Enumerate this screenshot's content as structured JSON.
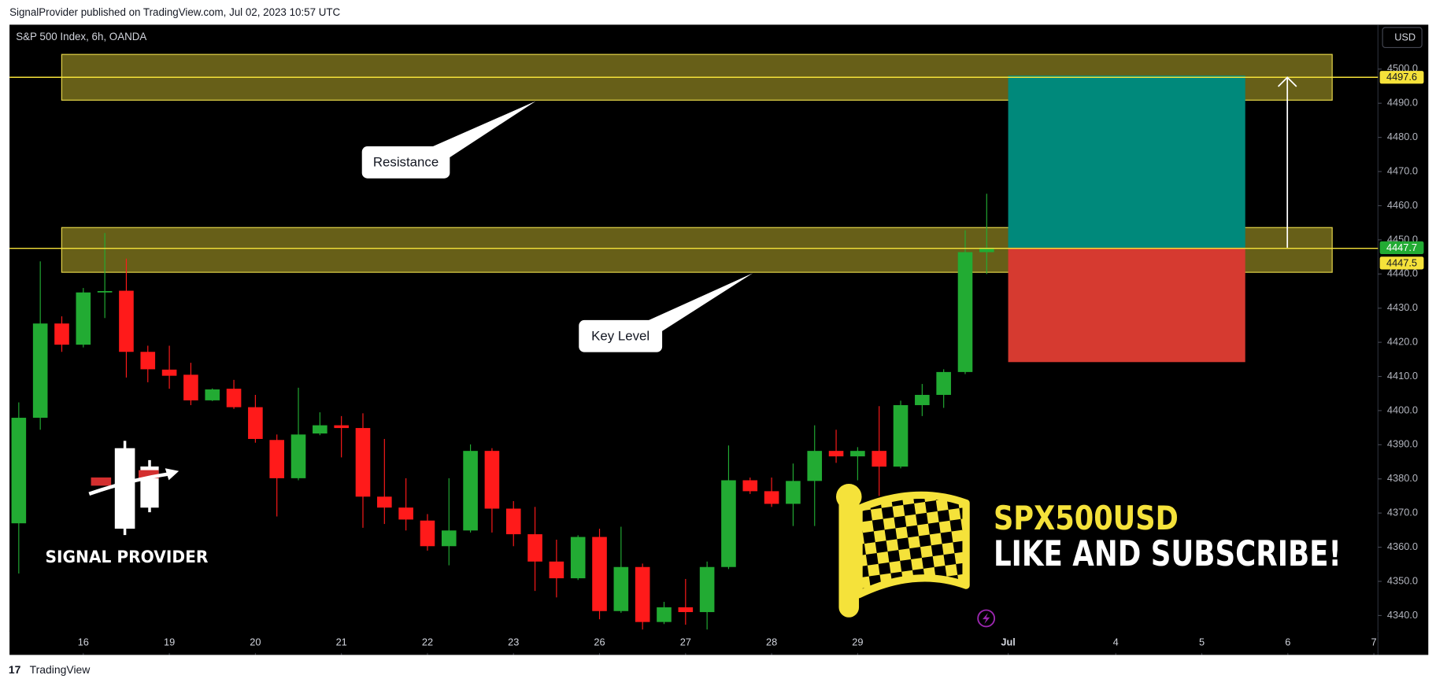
{
  "header": "SignalProvider published on TradingView.com, Jul 02, 2023 10:57 UTC",
  "footer": "TradingView",
  "branding": {
    "logo_text": "SIGNAL PROVIDER",
    "symbol": "SPX500USD",
    "call_to_action": "LIKE AND SUBSCRIBE!"
  },
  "chart_data": {
    "type": "candlestick",
    "title": "S&P 500 Index, 6h, OANDA",
    "currency": "USD",
    "up_color": "#22ab33",
    "down_color": "#ff1a1a",
    "open": [
      4367,
      4397.9,
      4425.5,
      4419.3,
      4434.6,
      4435.1,
      4417.2,
      4412,
      4410.5,
      4403,
      4406.4,
      4401,
      4391.4,
      4380.2,
      4393.3,
      4395.7,
      4394.9,
      4374.8,
      4371.6,
      4367.8,
      4360.3,
      4364.9,
      4388.2,
      4371.3,
      4363.8,
      4355.8,
      4350.9,
      4363,
      4341.3,
      4354.2,
      4338.1,
      4342.4,
      4341,
      4354.2,
      4379.6,
      4376.4,
      4372.7,
      4379.4,
      4388.2,
      4386.6,
      4388.2,
      4383.6,
      4401.6,
      4404.6,
      4411.3,
      4446.4
    ],
    "high": [
      4402.4,
      4443.7,
      4427.6,
      4435.9,
      4452,
      4444.5,
      4419,
      4419,
      4414,
      4406.5,
      4409,
      4404.6,
      4393,
      4406.7,
      4399.5,
      4398.4,
      4399.2,
      4391.7,
      4380.2,
      4369.7,
      4380.2,
      4390.1,
      4389,
      4373.5,
      4371.8,
      4362.2,
      4363.5,
      4365.4,
      4366,
      4355.2,
      4344,
      4350.7,
      4355.8,
      4389.8,
      4380.4,
      4380.4,
      4384.5,
      4395.7,
      4394.4,
      4389.3,
      4401.3,
      4402.9,
      4407.8,
      4412.1,
      4452.8,
      4463.5
    ],
    "low": [
      4352.3,
      4394.4,
      4417.2,
      4418.5,
      4427.1,
      4409.7,
      4408.3,
      4406.4,
      4401.6,
      4402.8,
      4400.5,
      4390.6,
      4369,
      4379.6,
      4392.8,
      4386.3,
      4365.7,
      4366.8,
      4364.9,
      4359,
      4354.7,
      4364.3,
      4364.3,
      4360.3,
      4347.2,
      4345.3,
      4350.4,
      4338.9,
      4340.8,
      4335.9,
      4337.5,
      4337.3,
      4335.9,
      4353.6,
      4375.6,
      4371.8,
      4366.2,
      4366.2,
      4384.7,
      4379.6,
      4375,
      4383.1,
      4398.4,
      4400.8,
      4410.7,
      4440
    ],
    "close": [
      4397.9,
      4425.5,
      4419.3,
      4434.6,
      4435.0,
      4417.2,
      4412.1,
      4410.2,
      4403,
      4406.2,
      4401,
      4391.7,
      4380.2,
      4393,
      4395.7,
      4394.9,
      4374.8,
      4371.6,
      4368.1,
      4360.3,
      4364.9,
      4388.2,
      4371.3,
      4363.8,
      4355.8,
      4350.9,
      4363,
      4341.3,
      4354.2,
      4338.1,
      4342.4,
      4341,
      4354.2,
      4379.6,
      4376.4,
      4372.7,
      4379.4,
      4388.2,
      4386.6,
      4388.2,
      4383.6,
      4401.6,
      4404.6,
      4411.3,
      4446.4,
      4447.7
    ],
    "ylim": [
      4329,
      4513
    ],
    "yticks": [
      {
        "value": 4340,
        "label": "4340.0"
      },
      {
        "value": 4350,
        "label": "4350.0"
      },
      {
        "value": 4360,
        "label": "4360.0"
      },
      {
        "value": 4370,
        "label": "4370.0"
      },
      {
        "value": 4380,
        "label": "4380.0"
      },
      {
        "value": 4390,
        "label": "4390.0"
      },
      {
        "value": 4400,
        "label": "4400.0"
      },
      {
        "value": 4410,
        "label": "4410.0"
      },
      {
        "value": 4420,
        "label": "4420.0"
      },
      {
        "value": 4430,
        "label": "4430.0"
      },
      {
        "value": 4440,
        "label": "4440.0"
      },
      {
        "value": 4450,
        "label": "4450.0"
      },
      {
        "value": 4460,
        "label": "4460.0"
      },
      {
        "value": 4470,
        "label": "4470.0"
      },
      {
        "value": 4480,
        "label": "4480.0"
      },
      {
        "value": 4490,
        "label": "4490.0"
      },
      {
        "value": 4500,
        "label": "4500.0"
      }
    ],
    "xlim": [
      -0.43,
      63.19
    ],
    "xticks": [
      {
        "value": 3,
        "label": "16"
      },
      {
        "value": 7,
        "label": "19"
      },
      {
        "value": 11,
        "label": "20"
      },
      {
        "value": 15,
        "label": "21"
      },
      {
        "value": 19,
        "label": "22"
      },
      {
        "value": 23,
        "label": "23"
      },
      {
        "value": 27,
        "label": "26"
      },
      {
        "value": 31,
        "label": "27"
      },
      {
        "value": 35,
        "label": "28"
      },
      {
        "value": 39,
        "label": "29"
      },
      {
        "value": 46,
        "label": "Jul"
      },
      {
        "value": 51,
        "label": "4"
      },
      {
        "value": 55,
        "label": "5"
      },
      {
        "value": 59,
        "label": "6"
      },
      {
        "value": 63,
        "label": "7"
      }
    ],
    "grid": false,
    "levels": [
      {
        "value": 4497.6,
        "color": "#f5e23a"
      },
      {
        "value": 4447.5,
        "color": "#f5e23a"
      }
    ],
    "zones": [
      {
        "name": "Resistance",
        "high": 4504.3,
        "low": 4490.9
      },
      {
        "name": "Key Level",
        "high": 4453.6,
        "low": 4440.5
      }
    ],
    "position": {
      "target": 4498.1,
      "entry": 4447.7,
      "stop": 4414.2,
      "profit_color": "#00897b",
      "loss_color": "#d63a30"
    }
  }
}
